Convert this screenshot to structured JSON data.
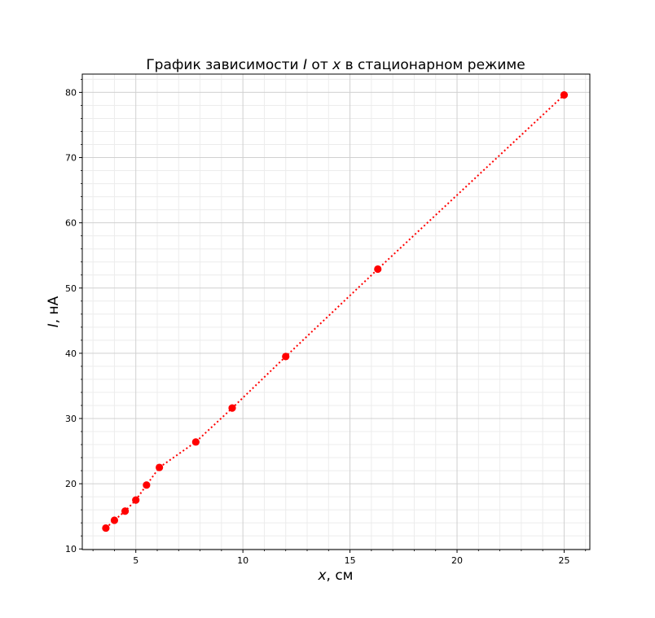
{
  "chart_data": {
    "type": "scatter",
    "title_parts": [
      "График зависимости ",
      "I",
      " от ",
      "x",
      " в стационарном режиме"
    ],
    "xlabel_parts": [
      "x",
      ", см"
    ],
    "ylabel_parts": [
      "I",
      ", нА"
    ],
    "xlim": [
      2.5,
      26.2
    ],
    "ylim": [
      9.9,
      82.8
    ],
    "xticks": [
      5,
      10,
      15,
      20,
      25
    ],
    "yticks": [
      10,
      20,
      30,
      40,
      50,
      60,
      70,
      80
    ],
    "grid": true,
    "minor_grid": true,
    "colors": {
      "series": "#ff0000",
      "major_grid": "#d0d0d0",
      "minor_grid": "#ececec"
    },
    "series": [
      {
        "line_style": "dotted",
        "marker": "circle",
        "x": [
          3.6,
          4.0,
          4.5,
          5.0,
          5.5,
          6.1,
          7.8,
          9.5,
          12.0,
          16.3,
          25.0
        ],
        "y": [
          13.2,
          14.4,
          15.8,
          17.5,
          19.8,
          22.5,
          26.4,
          31.6,
          39.5,
          52.9,
          79.6
        ]
      }
    ]
  }
}
